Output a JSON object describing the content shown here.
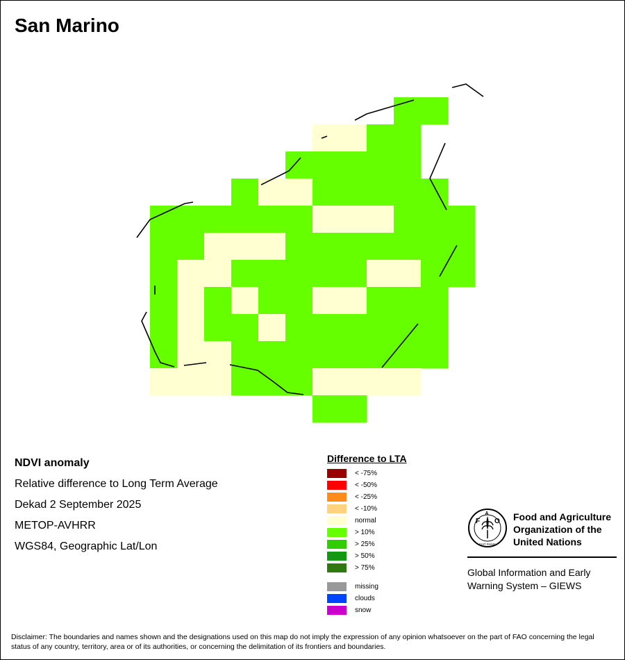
{
  "title": "San Marino",
  "info": {
    "product": "NDVI anomaly",
    "description": "Relative difference to Long Term Average",
    "period": "Dekad 2 September 2025",
    "sensor": "METOP-AVHRR",
    "projection": "WGS84, Geographic Lat/Lon"
  },
  "legend": {
    "title": "Difference to LTA",
    "items": [
      {
        "label": "< -75%",
        "color": "#990000"
      },
      {
        "label": "< -50%",
        "color": "#ff0000"
      },
      {
        "label": "< -25%",
        "color": "#ff8c1a"
      },
      {
        "label": "< -10%",
        "color": "#ffd27f"
      },
      {
        "label": "normal",
        "color": "#ffffd2"
      },
      {
        "label": "> 10%",
        "color": "#66ff00"
      },
      {
        "label": "> 25%",
        "color": "#33cc00"
      },
      {
        "label": "> 50%",
        "color": "#119911"
      },
      {
        "label": "> 75%",
        "color": "#2f7a10"
      }
    ],
    "extra_items": [
      {
        "label": "missing",
        "color": "#999999"
      },
      {
        "label": "clouds",
        "color": "#0044ff"
      },
      {
        "label": "snow",
        "color": "#cc00cc"
      }
    ]
  },
  "fao": {
    "logo_text": "FIAT PANIS",
    "name_line1": "Food and Agriculture",
    "name_line2": "Organization of the",
    "name_line3": "United Nations",
    "giews_line1": "Global Information and Early",
    "giews_line2": "Warning System – GIEWS"
  },
  "disclaimer": "Disclaimer: The boundaries and names shown and the designations used on this map do not imply the expression of any opinion whatsoever on the part of FAO concerning the legal status of any country, territory, area or of its authorities, or concerning the delimitation of its frontiers and boundaries.",
  "map_grid": {
    "classes": {
      "g": "> 10%",
      "n": "normal"
    },
    "rows": [
      ".........gg..",
      "......nngg...",
      ".....ggggg...",
      "...gnnggggg..",
      "ggggggnnnggg.",
      "ggnnnggggggg.",
      "gnngggggnngg.",
      "gngnggnnggg..",
      "gnggngggggg..",
      "gnngggggggg..",
      "nnngggnnnn...",
      "......gg....."
    ]
  }
}
